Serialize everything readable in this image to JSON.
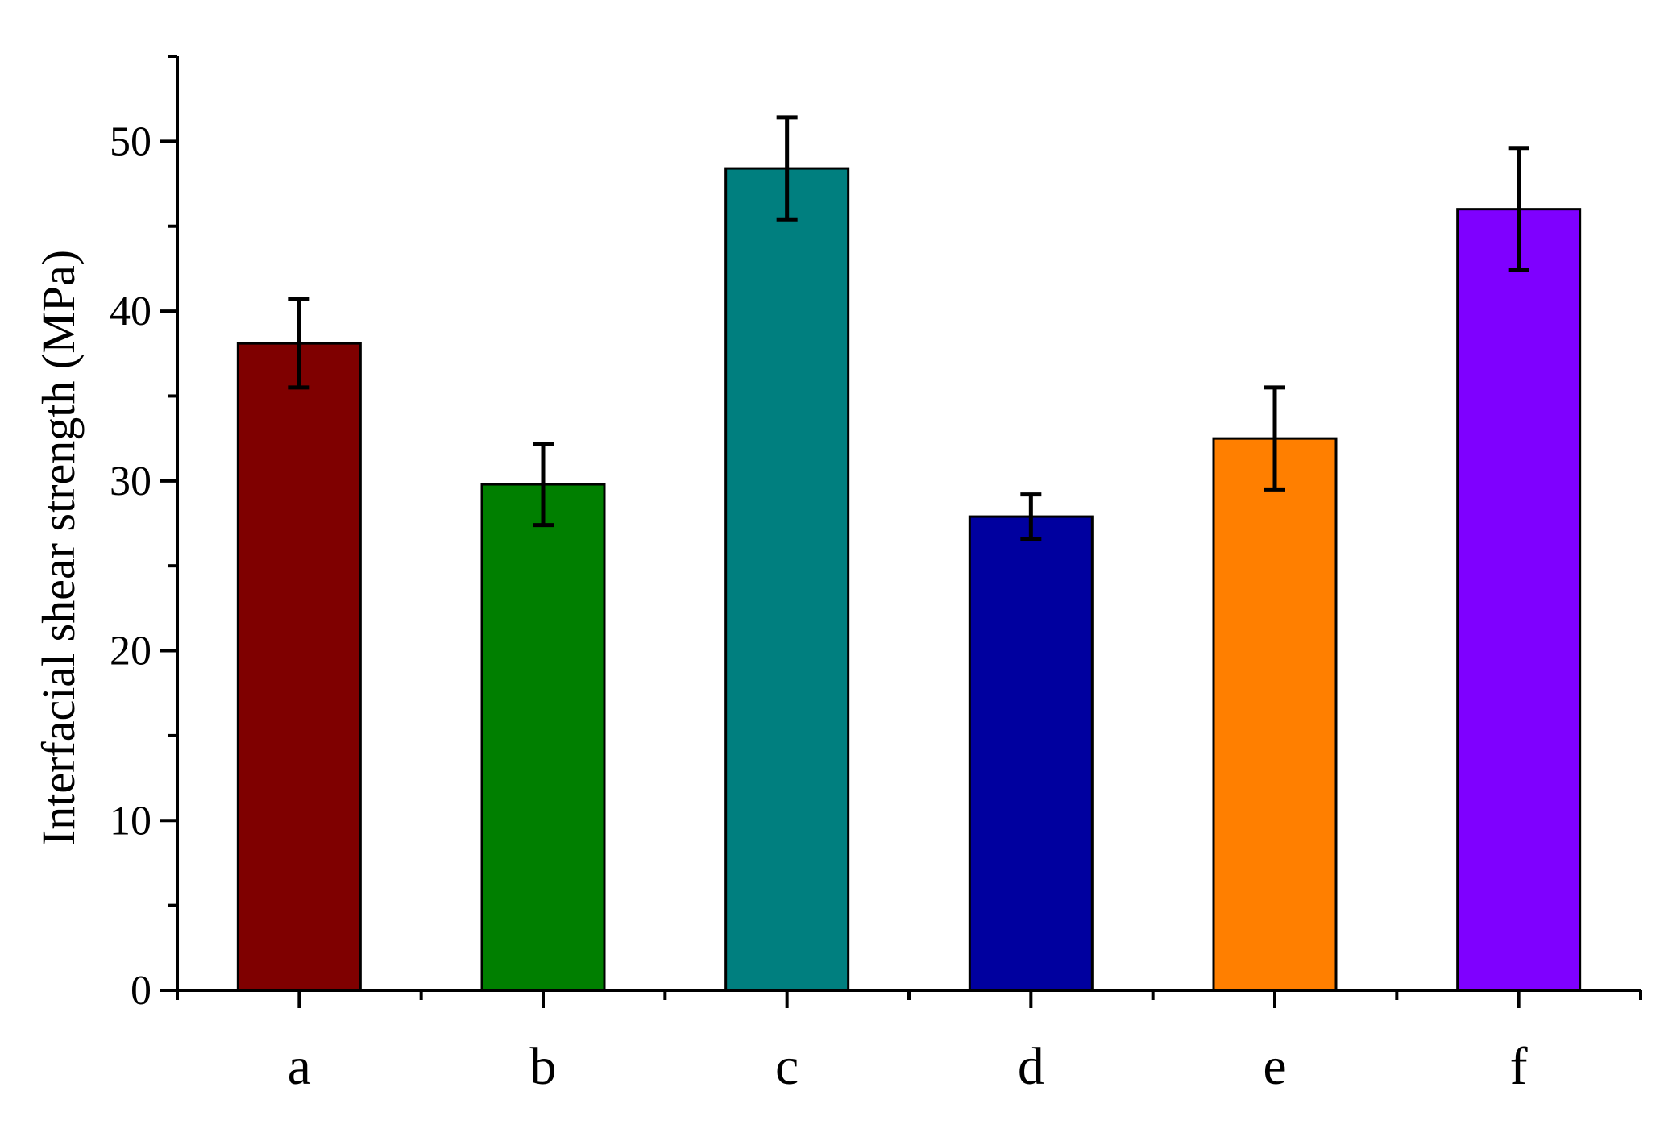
{
  "chart_data": {
    "type": "bar",
    "categories": [
      "a",
      "b",
      "c",
      "d",
      "e",
      "f"
    ],
    "values": [
      38.1,
      29.8,
      48.4,
      27.9,
      32.5,
      46.0
    ],
    "error": [
      2.6,
      2.4,
      3.0,
      1.3,
      3.0,
      3.6
    ],
    "colors": [
      "#7f0000",
      "#007f00",
      "#007f7f",
      "#00009f",
      "#ff7f00",
      "#7f00ff"
    ],
    "title": "",
    "xlabel": "",
    "ylabel": "Interfacial shear strength (MPa)",
    "ylim": [
      0,
      55
    ],
    "yticks": [
      "0",
      "10",
      "20",
      "30",
      "40",
      "50"
    ],
    "grid": false
  }
}
